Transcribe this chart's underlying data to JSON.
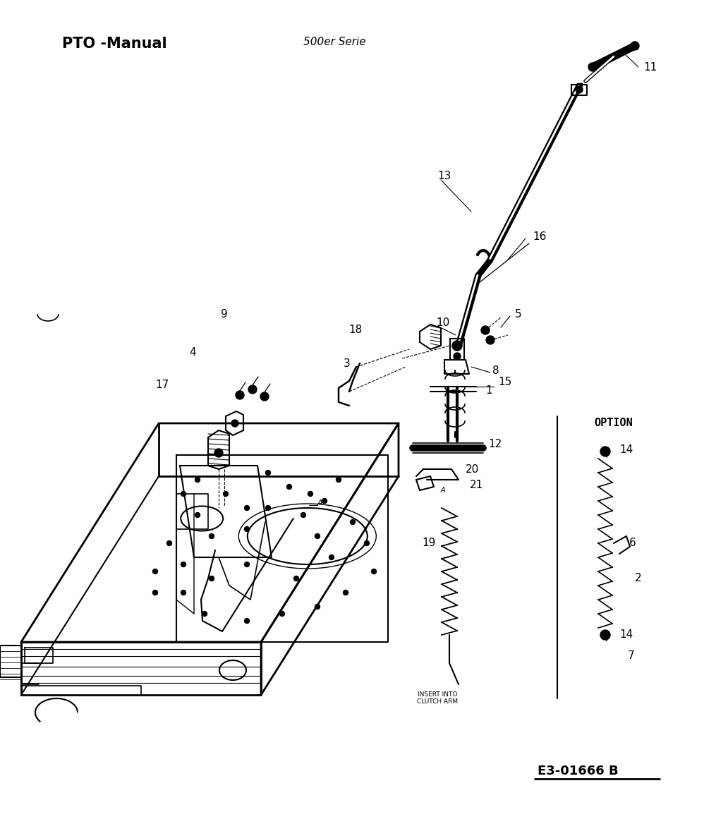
{
  "title_left": "PTO -Manual",
  "title_center": "500er Serie",
  "footer_code": "E3-01666 B",
  "option_label": "OPTION",
  "insert_label": "INSERT INTO\nCLUTCH ARM",
  "bg_color": "#ffffff",
  "line_color": "#000000",
  "title_fontsize": 15,
  "subtitle_fontsize": 11,
  "label_fontsize": 11
}
